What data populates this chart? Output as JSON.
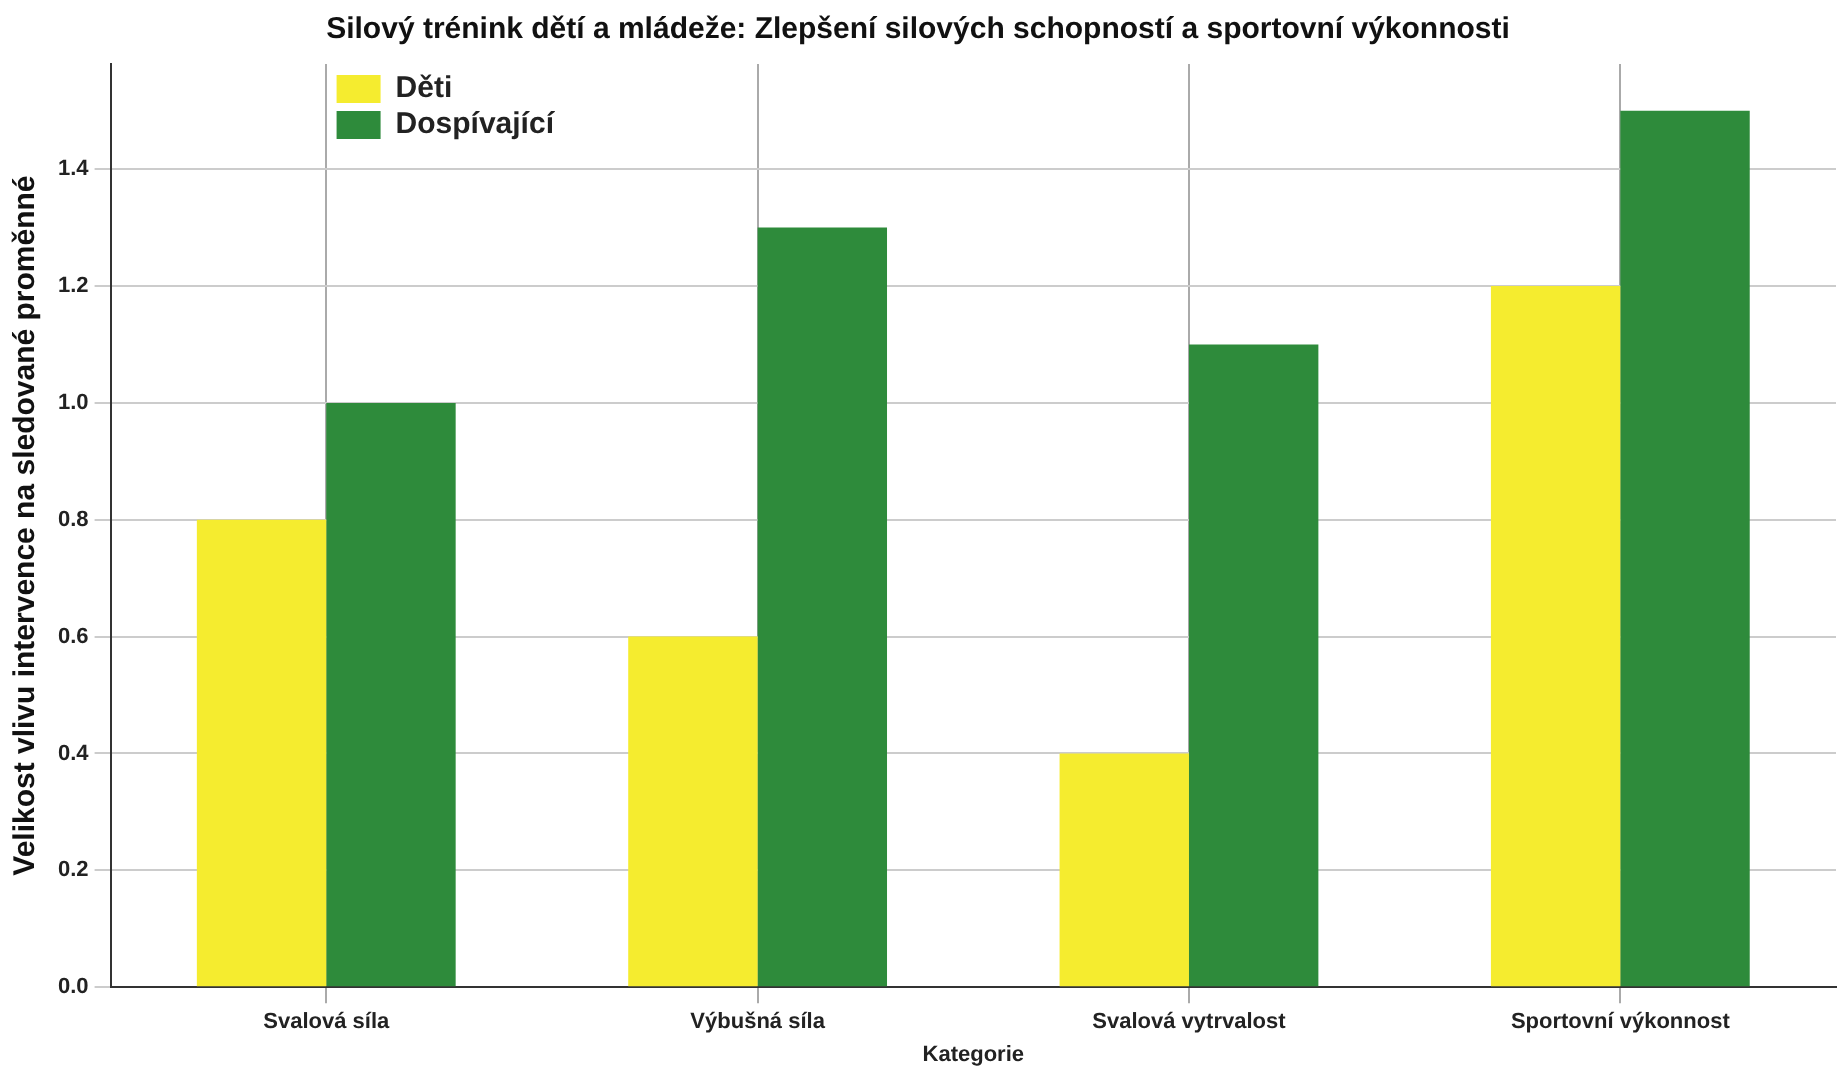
{
  "chart_data": {
    "type": "bar",
    "title": "Silový trénink dětí a mládeže: Zlepšení silových schopností a sportovní výkonnosti",
    "xlabel": "Kategorie",
    "ylabel": "Velikost vlivu intervence na sledované proměnné",
    "categories": [
      "Svalová síla",
      "Výbušná síla",
      "Svalová vytrvalost",
      "Sportovní výkonnost"
    ],
    "series": [
      {
        "name": "Děti",
        "color": "#f5ec2f",
        "values": [
          0.8,
          0.6,
          0.4,
          1.2
        ]
      },
      {
        "name": "Dospívající",
        "color": "#2e8b3b",
        "values": [
          1.0,
          1.3,
          1.1,
          1.5
        ]
      }
    ],
    "ylim": [
      0,
      1.58
    ],
    "yticks": [
      {
        "value": 0,
        "label": "0.0"
      },
      {
        "value": 0.2,
        "label": "0.2"
      },
      {
        "value": 0.4,
        "label": "0.4"
      },
      {
        "value": 0.6,
        "label": "0.6"
      },
      {
        "value": 0.8,
        "label": "0.8"
      },
      {
        "value": 1,
        "label": "1.0"
      },
      {
        "value": 1.2,
        "label": "1.2"
      },
      {
        "value": 1.4,
        "label": "1.4"
      }
    ],
    "grid": true,
    "legend": "top left"
  }
}
